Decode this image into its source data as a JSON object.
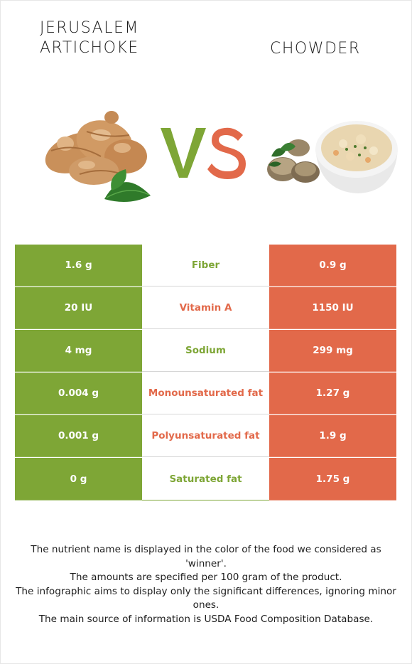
{
  "titles": {
    "left": "JERUSALEM ARTICHOKE",
    "right": "CHOWDER"
  },
  "colors": {
    "left_winner": "#7ea636",
    "right_winner": "#e2694a",
    "vs_v": "#7ea636",
    "vs_s": "#e2694a"
  },
  "images": {
    "left_icon": "jerusalem-artichoke-image",
    "right_icon": "chowder-bowl-image"
  },
  "rows": [
    {
      "left": "1.6 g",
      "nutrient": "Fiber",
      "right": "0.9 g",
      "winner": "left"
    },
    {
      "left": "20 IU",
      "nutrient": "Vitamin A",
      "right": "1150 IU",
      "winner": "right"
    },
    {
      "left": "4 mg",
      "nutrient": "Sodium",
      "right": "299 mg",
      "winner": "left"
    },
    {
      "left": "0.004 g",
      "nutrient": "Monounsaturated fat",
      "right": "1.27 g",
      "winner": "right"
    },
    {
      "left": "0.001 g",
      "nutrient": "Polyunsaturated fat",
      "right": "1.9 g",
      "winner": "right"
    },
    {
      "left": "0 g",
      "nutrient": "Saturated fat",
      "right": "1.75 g",
      "winner": "left"
    }
  ],
  "footnote": [
    "The nutrient name is displayed in the color of the food we considered as 'winner'.",
    "The amounts are specified per 100 gram of the product.",
    "The infographic aims to display only the significant differences, ignoring minor ones.",
    "The main source of information is USDA Food Composition Database."
  ]
}
